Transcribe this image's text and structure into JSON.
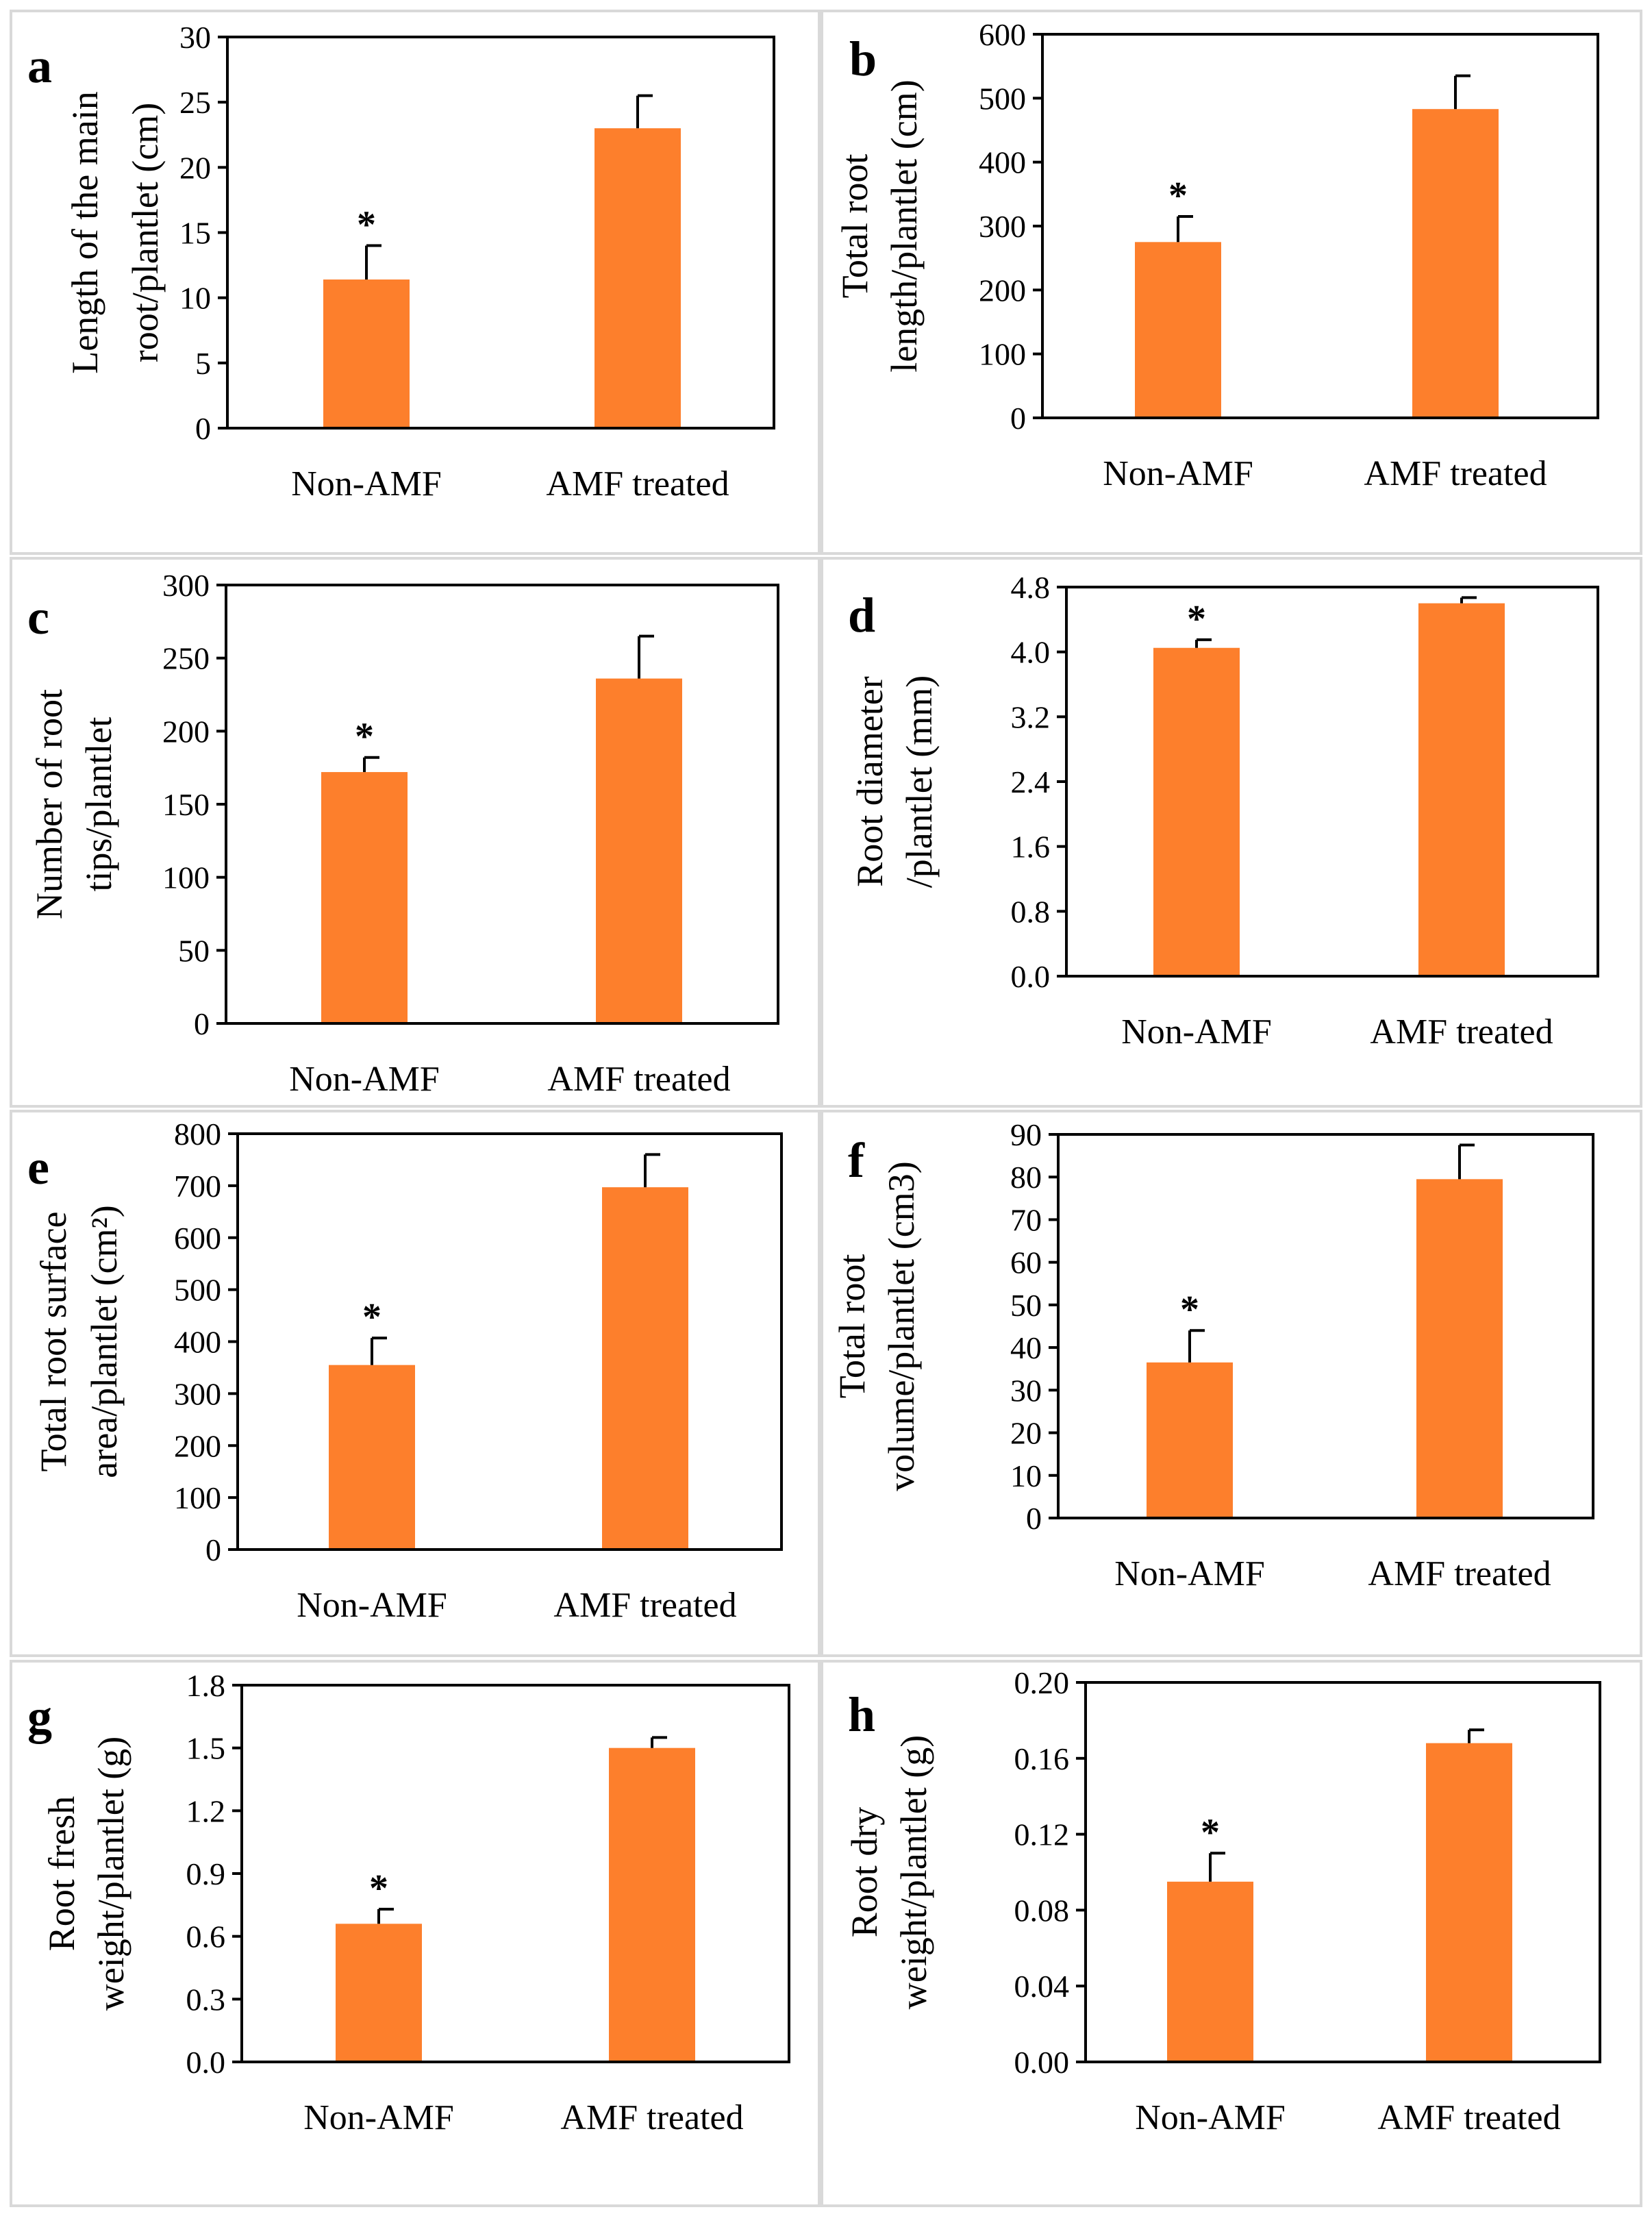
{
  "colors": {
    "bar": "#fd7f2c",
    "axis": "#000000",
    "panel_border": "#d9d9d9"
  },
  "chart_data": [
    {
      "panel": "a",
      "type": "bar",
      "ylabel": [
        "Length of the main",
        "root/plantlet (cm)"
      ],
      "categories": [
        "Non-AMF",
        "AMF treated"
      ],
      "values": [
        11.4,
        23.0
      ],
      "errors": [
        2.6,
        2.5
      ],
      "ylim": [
        0,
        30
      ],
      "yticks": [
        "0",
        "5",
        "10",
        "15",
        "20",
        "25",
        "30"
      ],
      "significance": [
        "*",
        ""
      ]
    },
    {
      "panel": "b",
      "type": "bar",
      "ylabel": [
        "Total root",
        "length/plantlet (cm)"
      ],
      "categories": [
        "Non-AMF",
        "AMF treated"
      ],
      "values": [
        275,
        483
      ],
      "errors": [
        40,
        52
      ],
      "ylim": [
        0,
        600
      ],
      "yticks": [
        "0",
        "100",
        "200",
        "300",
        "400",
        "500",
        "600"
      ],
      "significance": [
        "*",
        ""
      ]
    },
    {
      "panel": "c",
      "type": "bar",
      "ylabel": [
        "Number of root",
        "tips/plantlet"
      ],
      "categories": [
        "Non-AMF",
        "AMF treated"
      ],
      "values": [
        172,
        236
      ],
      "errors": [
        10,
        29
      ],
      "ylim": [
        0,
        300
      ],
      "yticks": [
        "0",
        "50",
        "100",
        "150",
        "200",
        "250",
        "300"
      ],
      "significance": [
        "*",
        ""
      ]
    },
    {
      "panel": "d",
      "type": "bar",
      "ylabel": [
        "Root diameter",
        "/plantlet (mm)"
      ],
      "categories": [
        "Non-AMF",
        "AMF treated"
      ],
      "values": [
        4.05,
        4.6
      ],
      "errors": [
        0.1,
        0.07
      ],
      "ylim": [
        0,
        4.8
      ],
      "yticks": [
        "0.0",
        "0.8",
        "1.6",
        "2.4",
        "3.2",
        "4.0",
        "4.8"
      ],
      "significance": [
        "*",
        ""
      ]
    },
    {
      "panel": "e",
      "type": "bar",
      "ylabel": [
        "Total root surface",
        "area/plantlet (cm²)"
      ],
      "categories": [
        "Non-AMF",
        "AMF treated"
      ],
      "values": [
        355,
        697
      ],
      "errors": [
        52,
        63
      ],
      "ylim": [
        0,
        800
      ],
      "yticks": [
        "0",
        "100",
        "200",
        "300",
        "400",
        "500",
        "600",
        "700",
        "800"
      ],
      "significance": [
        "*",
        ""
      ]
    },
    {
      "panel": "f",
      "type": "bar",
      "ylabel": [
        "Total root",
        "volume/plantlet (cm3)"
      ],
      "categories": [
        "Non-AMF",
        "AMF treated"
      ],
      "values": [
        36.5,
        79.5
      ],
      "errors": [
        7.5,
        8
      ],
      "ylim": [
        0,
        90
      ],
      "yticks": [
        "0",
        "10",
        "20",
        "30",
        "40",
        "50",
        "60",
        "70",
        "80",
        "90"
      ],
      "significance": [
        "*",
        ""
      ]
    },
    {
      "panel": "g",
      "type": "bar",
      "ylabel": [
        "Root fresh",
        "weight/plantlet (g)"
      ],
      "categories": [
        "Non-AMF",
        "AMF treated"
      ],
      "values": [
        0.66,
        1.5
      ],
      "errors": [
        0.07,
        0.05
      ],
      "ylim": [
        0,
        1.8
      ],
      "yticks": [
        "0.0",
        "0.3",
        "0.6",
        "0.9",
        "1.2",
        "1.5",
        "1.8"
      ],
      "significance": [
        "*",
        ""
      ]
    },
    {
      "panel": "h",
      "type": "bar",
      "ylabel": [
        "Root dry",
        "weight/plantlet (g)"
      ],
      "categories": [
        "Non-AMF",
        "AMF treated"
      ],
      "values": [
        0.095,
        0.168
      ],
      "errors": [
        0.015,
        0.007
      ],
      "ylim": [
        0,
        0.2
      ],
      "yticks": [
        "0.00",
        "0.04",
        "0.08",
        "0.12",
        "0.16",
        "0.20"
      ],
      "significance": [
        "*",
        ""
      ]
    }
  ]
}
